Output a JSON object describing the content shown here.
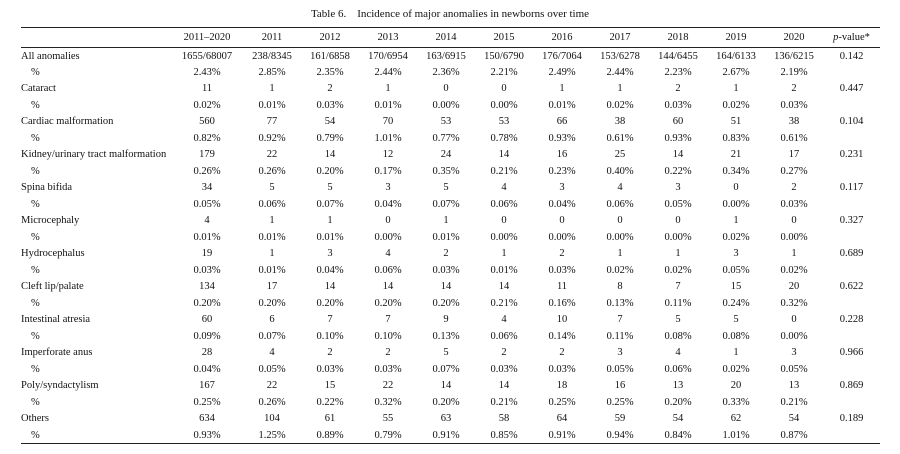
{
  "caption": "Table 6. Incidence of major anomalies in newborns over time",
  "columns": [
    "2011–2020",
    "2011",
    "2012",
    "2013",
    "2014",
    "2015",
    "2016",
    "2017",
    "2018",
    "2019",
    "2020"
  ],
  "pvalue_header": {
    "p": "p",
    "rest": "-value*"
  },
  "rows": [
    {
      "label": "All anomalies",
      "counts": [
        "1655/68007",
        "238/8345",
        "161/6858",
        "170/6954",
        "163/6915",
        "150/6790",
        "176/7064",
        "153/6278",
        "144/6455",
        "164/6133",
        "136/6215"
      ],
      "pct_label": "%",
      "percents": [
        "2.43%",
        "2.85%",
        "2.35%",
        "2.44%",
        "2.36%",
        "2.21%",
        "2.49%",
        "2.44%",
        "2.23%",
        "2.67%",
        "2.19%"
      ],
      "p": "0.142"
    },
    {
      "label": "Cataract",
      "counts": [
        "11",
        "1",
        "2",
        "1",
        "0",
        "0",
        "1",
        "1",
        "2",
        "1",
        "2"
      ],
      "pct_label": "%",
      "percents": [
        "0.02%",
        "0.01%",
        "0.03%",
        "0.01%",
        "0.00%",
        "0.00%",
        "0.01%",
        "0.02%",
        "0.03%",
        "0.02%",
        "0.03%"
      ],
      "p": "0.447"
    },
    {
      "label": "Cardiac malformation",
      "counts": [
        "560",
        "77",
        "54",
        "70",
        "53",
        "53",
        "66",
        "38",
        "60",
        "51",
        "38"
      ],
      "pct_label": "%",
      "percents": [
        "0.82%",
        "0.92%",
        "0.79%",
        "1.01%",
        "0.77%",
        "0.78%",
        "0.93%",
        "0.61%",
        "0.93%",
        "0.83%",
        "0.61%"
      ],
      "p": "0.104"
    },
    {
      "label": "Kidney/urinary tract malformation",
      "counts": [
        "179",
        "22",
        "14",
        "12",
        "24",
        "14",
        "16",
        "25",
        "14",
        "21",
        "17"
      ],
      "pct_label": "%",
      "percents": [
        "0.26%",
        "0.26%",
        "0.20%",
        "0.17%",
        "0.35%",
        "0.21%",
        "0.23%",
        "0.40%",
        "0.22%",
        "0.34%",
        "0.27%"
      ],
      "p": "0.231"
    },
    {
      "label": "Spina bifida",
      "counts": [
        "34",
        "5",
        "5",
        "3",
        "5",
        "4",
        "3",
        "4",
        "3",
        "0",
        "2"
      ],
      "pct_label": "%",
      "percents": [
        "0.05%",
        "0.06%",
        "0.07%",
        "0.04%",
        "0.07%",
        "0.06%",
        "0.04%",
        "0.06%",
        "0.05%",
        "0.00%",
        "0.03%"
      ],
      "p": "0.117"
    },
    {
      "label": "Microcephaly",
      "counts": [
        "4",
        "1",
        "1",
        "0",
        "1",
        "0",
        "0",
        "0",
        "0",
        "1",
        "0"
      ],
      "pct_label": "%",
      "percents": [
        "0.01%",
        "0.01%",
        "0.01%",
        "0.00%",
        "0.01%",
        "0.00%",
        "0.00%",
        "0.00%",
        "0.00%",
        "0.02%",
        "0.00%"
      ],
      "p": "0.327"
    },
    {
      "label": "Hydrocephalus",
      "counts": [
        "19",
        "1",
        "3",
        "4",
        "2",
        "1",
        "2",
        "1",
        "1",
        "3",
        "1"
      ],
      "pct_label": "%",
      "percents": [
        "0.03%",
        "0.01%",
        "0.04%",
        "0.06%",
        "0.03%",
        "0.01%",
        "0.03%",
        "0.02%",
        "0.02%",
        "0.05%",
        "0.02%"
      ],
      "p": "0.689"
    },
    {
      "label": "Cleft lip/palate",
      "counts": [
        "134",
        "17",
        "14",
        "14",
        "14",
        "14",
        "11",
        "8",
        "7",
        "15",
        "20"
      ],
      "pct_label": "%",
      "percents": [
        "0.20%",
        "0.20%",
        "0.20%",
        "0.20%",
        "0.20%",
        "0.21%",
        "0.16%",
        "0.13%",
        "0.11%",
        "0.24%",
        "0.32%"
      ],
      "p": "0.622"
    },
    {
      "label": "Intestinal atresia",
      "counts": [
        "60",
        "6",
        "7",
        "7",
        "9",
        "4",
        "10",
        "7",
        "5",
        "5",
        "0"
      ],
      "pct_label": "%",
      "percents": [
        "0.09%",
        "0.07%",
        "0.10%",
        "0.10%",
        "0.13%",
        "0.06%",
        "0.14%",
        "0.11%",
        "0.08%",
        "0.08%",
        "0.00%"
      ],
      "p": "0.228"
    },
    {
      "label": "Imperforate anus",
      "counts": [
        "28",
        "4",
        "2",
        "2",
        "5",
        "2",
        "2",
        "3",
        "4",
        "1",
        "3"
      ],
      "pct_label": "%",
      "percents": [
        "0.04%",
        "0.05%",
        "0.03%",
        "0.03%",
        "0.07%",
        "0.03%",
        "0.03%",
        "0.05%",
        "0.06%",
        "0.02%",
        "0.05%"
      ],
      "p": "0.966"
    },
    {
      "label": "Poly/syndactylism",
      "counts": [
        "167",
        "22",
        "15",
        "22",
        "14",
        "14",
        "18",
        "16",
        "13",
        "20",
        "13"
      ],
      "pct_label": "%",
      "percents": [
        "0.25%",
        "0.26%",
        "0.22%",
        "0.32%",
        "0.20%",
        "0.21%",
        "0.25%",
        "0.25%",
        "0.20%",
        "0.33%",
        "0.21%"
      ],
      "p": "0.869"
    },
    {
      "label": "Others",
      "counts": [
        "634",
        "104",
        "61",
        "55",
        "63",
        "58",
        "64",
        "59",
        "54",
        "62",
        "54"
      ],
      "pct_label": "%",
      "percents": [
        "0.93%",
        "1.25%",
        "0.89%",
        "0.79%",
        "0.91%",
        "0.85%",
        "0.91%",
        "0.94%",
        "0.84%",
        "1.01%",
        "0.87%"
      ],
      "p": "0.189"
    }
  ]
}
